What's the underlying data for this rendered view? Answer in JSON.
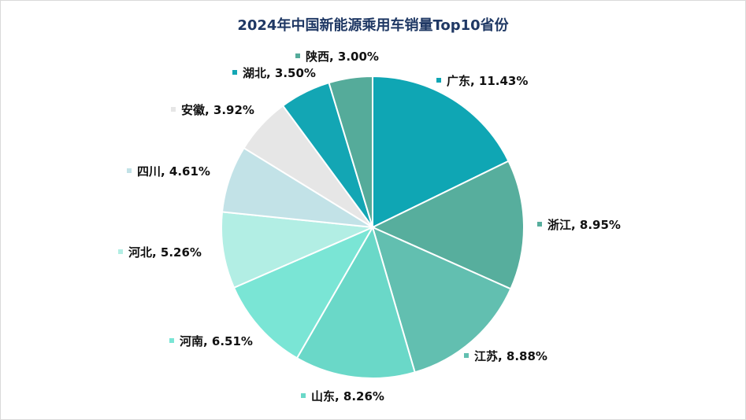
{
  "chart_data": {
    "type": "pie",
    "title": "2024年中国新能源乘用车销量Top10省份",
    "slices": [
      {
        "name": "广东",
        "value": 11.43,
        "label": "广东, 11.43%",
        "color": "#0fa6b4"
      },
      {
        "name": "浙江",
        "value": 8.95,
        "label": "浙江, 8.95%",
        "color": "#57ae9d"
      },
      {
        "name": "江苏",
        "value": 8.88,
        "label": "江苏, 8.88%",
        "color": "#62bfb0"
      },
      {
        "name": "山东",
        "value": 8.26,
        "label": "山东, 8.26%",
        "color": "#6ad8c8"
      },
      {
        "name": "河南",
        "value": 6.51,
        "label": "河南, 6.51%",
        "color": "#7ae5d5"
      },
      {
        "name": "河北",
        "value": 5.26,
        "label": "河北, 5.26%",
        "color": "#b2eee4"
      },
      {
        "name": "四川",
        "value": 4.61,
        "label": "四川, 4.61%",
        "color": "#c2e2e7"
      },
      {
        "name": "安徽",
        "value": 3.92,
        "label": "安徽, 3.92%",
        "color": "#e6e6e6"
      },
      {
        "name": "湖北",
        "value": 3.5,
        "label": "湖北, 3.50%",
        "color": "#13a6b4"
      },
      {
        "name": "陕西",
        "value": 3.0,
        "label": "陕西, 3.00%",
        "color": "#55ab9a"
      }
    ]
  }
}
